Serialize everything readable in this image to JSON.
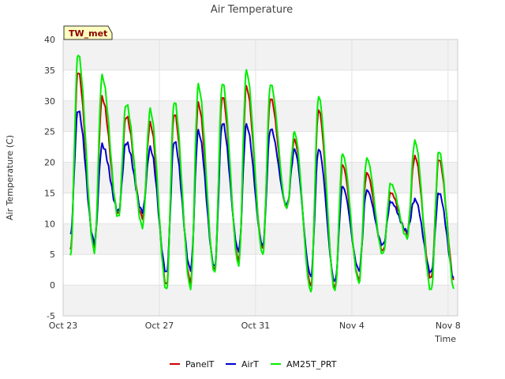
{
  "chart_data": {
    "type": "line",
    "title": "Air Temperature",
    "xlabel": "Time",
    "ylabel": "Air Temperature (C)",
    "station_label": "TW_met",
    "ylim": [
      -5,
      40
    ],
    "yticks": [
      -5,
      0,
      5,
      10,
      15,
      20,
      25,
      30,
      35,
      40
    ],
    "xlim_days": [
      0,
      16.4
    ],
    "xticks": [
      {
        "day": 0,
        "label": "Oct 23"
      },
      {
        "day": 4,
        "label": "Oct 27"
      },
      {
        "day": 8,
        "label": "Oct 31"
      },
      {
        "day": 12,
        "label": "Nov 4"
      },
      {
        "day": 16,
        "label": "Nov 8"
      }
    ],
    "grid": true,
    "banded_background": true,
    "legend_position": "bottom-center",
    "series": [
      {
        "name": "PanelT",
        "color": "#cc0000",
        "daily_max": [
          34.8,
          30.5,
          27.5,
          26.3,
          28.0,
          29.5,
          30.8,
          32.2,
          30.5,
          23.6,
          28.6,
          19.5,
          18.3,
          15.0,
          21.0,
          20.5,
          20.3
        ],
        "daily_min": [
          5.5,
          6.0,
          11.5,
          11.0,
          0.0,
          0.5,
          2.5,
          4.0,
          6.0,
          12.5,
          0.0,
          -0.5,
          1.0,
          5.5,
          8.5,
          1.0,
          0.0
        ]
      },
      {
        "name": "AirT",
        "color": "#0000cc",
        "daily_max": [
          28.5,
          22.8,
          23.2,
          22.3,
          23.5,
          25.0,
          26.5,
          26.0,
          25.5,
          22.0,
          22.2,
          16.0,
          15.5,
          13.5,
          14.0,
          15.0,
          15.2
        ],
        "daily_min": [
          8.0,
          7.0,
          12.0,
          12.0,
          2.0,
          2.5,
          3.0,
          5.5,
          6.5,
          13.0,
          1.5,
          0.5,
          2.5,
          6.5,
          8.8,
          2.0,
          0.5
        ]
      },
      {
        "name": "AM25T_PRT",
        "color": "#00ee00",
        "daily_max": [
          37.7,
          34.0,
          29.5,
          28.5,
          30.0,
          32.5,
          33.0,
          34.8,
          32.8,
          24.8,
          30.8,
          21.3,
          20.7,
          16.5,
          23.5,
          21.8,
          23.0
        ],
        "daily_min": [
          4.5,
          5.5,
          11.0,
          9.5,
          -0.8,
          -0.5,
          2.0,
          3.2,
          5.0,
          12.5,
          -1.0,
          -1.0,
          0.5,
          5.0,
          7.8,
          -1.0,
          -1.5
        ]
      }
    ]
  }
}
